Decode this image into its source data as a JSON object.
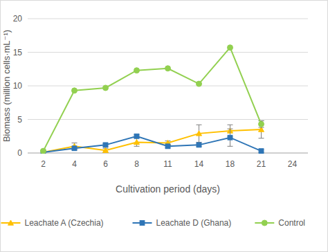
{
  "chart_data": {
    "type": "line",
    "x_label": "Cultivation period (days)",
    "y_label": "Biomass (million cells·mL⁻¹)",
    "categories": [
      "2",
      "4",
      "6",
      "8",
      "11",
      "14",
      "18",
      "21",
      "24"
    ],
    "series": [
      {
        "name": "Leachate A (Czechia)",
        "color": "#ffc000",
        "marker": "triangle",
        "line_style": "solid",
        "values": [
          0.1,
          1.0,
          0.4,
          1.6,
          1.5,
          2.9,
          3.3,
          3.5,
          null
        ],
        "errors": [
          null,
          0.5,
          0.3,
          0.6,
          0.3,
          1.3,
          0.9,
          1.3,
          null
        ]
      },
      {
        "name": "Leachate D (Ghana)",
        "color": "#2e75b6",
        "marker": "square",
        "line_style": "solid",
        "values": [
          0.1,
          0.7,
          1.2,
          2.5,
          1.0,
          1.2,
          2.3,
          0.3,
          null
        ],
        "errors": [
          null,
          0.2,
          0.2,
          0.2,
          0.2,
          0.2,
          1.3,
          0.2,
          null
        ]
      },
      {
        "name": "Control",
        "color": "#92d050",
        "marker": "circle",
        "line_style": "solid",
        "values": [
          0.3,
          9.3,
          9.7,
          12.3,
          12.6,
          10.3,
          15.7,
          4.3,
          null
        ],
        "errors": [
          null,
          null,
          null,
          null,
          null,
          null,
          null,
          0.5,
          null
        ]
      }
    ],
    "ylim": [
      0,
      20
    ],
    "yticks": [
      0,
      5,
      10,
      15,
      20
    ],
    "grid": true,
    "legend": "bottom"
  }
}
